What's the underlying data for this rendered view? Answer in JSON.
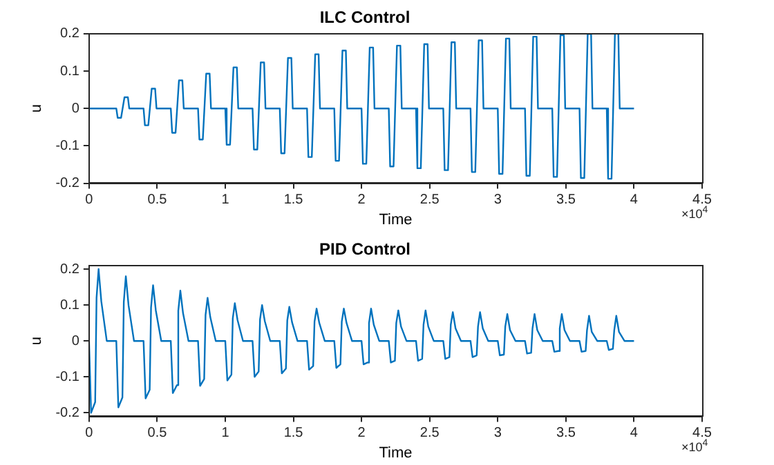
{
  "chart_data": [
    {
      "type": "line",
      "title": "ILC Control",
      "xlabel": "Time",
      "ylabel": "u",
      "annotations": [
        "×10$^{4}$"
      ],
      "xlim": [
        0,
        4.5
      ],
      "xticks": [
        0,
        0.5,
        1,
        1.5,
        2,
        2.5,
        3,
        3.5,
        4,
        4.5
      ],
      "ylim": [
        -0.2,
        0.2
      ],
      "yticks": [
        -0.2,
        -0.1,
        0,
        0.1,
        0.2
      ],
      "grid": false,
      "legend": false,
      "marker": "none",
      "line_style": "solid",
      "series": [
        {
          "color": "#0072bd",
          "x": [
            0,
            0.2,
            0.21,
            0.235,
            0.26,
            0.285,
            0.295,
            0.4,
            0.41,
            0.435,
            0.46,
            0.485,
            0.495,
            0.6,
            0.61,
            0.635,
            0.66,
            0.685,
            0.695,
            0.8,
            0.81,
            0.835,
            0.86,
            0.885,
            0.895,
            1.0,
            1.01,
            1.035,
            1.06,
            1.085,
            1.095,
            1.2,
            1.21,
            1.235,
            1.26,
            1.285,
            1.295,
            1.4,
            1.41,
            1.435,
            1.46,
            1.485,
            1.495,
            1.6,
            1.61,
            1.635,
            1.66,
            1.685,
            1.695,
            1.8,
            1.81,
            1.835,
            1.86,
            1.885,
            1.895,
            2.0,
            2.01,
            2.035,
            2.06,
            2.085,
            2.095,
            2.2,
            2.21,
            2.235,
            2.26,
            2.285,
            2.295,
            2.4,
            2.41,
            2.435,
            2.46,
            2.485,
            2.495,
            2.6,
            2.61,
            2.635,
            2.66,
            2.685,
            2.695,
            2.8,
            2.81,
            2.835,
            2.86,
            2.885,
            2.895,
            3.0,
            3.01,
            3.035,
            3.06,
            3.085,
            3.095,
            3.2,
            3.21,
            3.235,
            3.26,
            3.285,
            3.295,
            3.4,
            3.41,
            3.435,
            3.46,
            3.485,
            3.495,
            3.6,
            3.61,
            3.635,
            3.66,
            3.685,
            3.695,
            3.8,
            3.81,
            3.835,
            3.86,
            3.885,
            3.895,
            4.0
          ],
          "values": [
            0,
            0,
            -0.025,
            -0.025,
            0.03,
            0.03,
            0,
            0,
            -0.045,
            -0.045,
            0.053,
            0.053,
            0,
            0,
            -0.065,
            -0.065,
            0.075,
            0.075,
            0,
            0,
            -0.083,
            -0.083,
            0.093,
            0.093,
            0,
            0,
            -0.097,
            -0.097,
            0.11,
            0.11,
            0,
            0,
            -0.11,
            -0.11,
            0.123,
            0.123,
            0,
            0,
            -0.12,
            -0.12,
            0.135,
            0.135,
            0,
            0,
            -0.13,
            -0.13,
            0.145,
            0.145,
            0,
            0,
            -0.14,
            -0.14,
            0.155,
            0.155,
            0,
            0,
            -0.148,
            -0.148,
            0.163,
            0.163,
            0,
            0,
            -0.155,
            -0.155,
            0.168,
            0.168,
            0,
            0,
            -0.16,
            -0.16,
            0.172,
            0.172,
            0,
            0,
            -0.165,
            -0.165,
            0.177,
            0.177,
            0,
            0,
            -0.17,
            -0.17,
            0.182,
            0.182,
            0,
            0,
            -0.175,
            -0.175,
            0.187,
            0.187,
            0,
            0,
            -0.18,
            -0.18,
            0.192,
            0.192,
            0,
            0,
            -0.183,
            -0.183,
            0.196,
            0.196,
            0,
            0,
            -0.186,
            -0.186,
            0.199,
            0.199,
            0,
            0,
            -0.188,
            -0.188,
            0.2,
            0.2,
            0,
            0
          ]
        }
      ]
    },
    {
      "type": "line",
      "title": "PID Control",
      "xlabel": "Time",
      "ylabel": "u",
      "annotations": [
        "×10$^{4}$"
      ],
      "xlim": [
        0,
        4.5
      ],
      "xticks": [
        0,
        0.5,
        1,
        1.5,
        2,
        2.5,
        3,
        3.5,
        4,
        4.5
      ],
      "ylim": [
        -0.21,
        0.21
      ],
      "yticks": [
        -0.2,
        -0.1,
        0,
        0.1,
        0.2
      ],
      "grid": false,
      "legend": false,
      "marker": "none",
      "line_style": "solid",
      "series": [
        {
          "color": "#0072bd",
          "x": [
            0,
            0.015,
            0.045,
            0.055,
            0.07,
            0.09,
            0.13,
            0.2,
            0.215,
            0.245,
            0.255,
            0.27,
            0.29,
            0.33,
            0.4,
            0.415,
            0.445,
            0.455,
            0.47,
            0.49,
            0.53,
            0.6,
            0.615,
            0.645,
            0.655,
            0.67,
            0.69,
            0.73,
            0.8,
            0.815,
            0.845,
            0.855,
            0.87,
            0.89,
            0.93,
            1.0,
            1.015,
            1.045,
            1.055,
            1.07,
            1.09,
            1.13,
            1.2,
            1.215,
            1.245,
            1.255,
            1.27,
            1.29,
            1.33,
            1.4,
            1.415,
            1.445,
            1.455,
            1.47,
            1.49,
            1.53,
            1.6,
            1.615,
            1.645,
            1.655,
            1.67,
            1.69,
            1.73,
            1.8,
            1.815,
            1.845,
            1.855,
            1.87,
            1.89,
            1.93,
            2.0,
            2.015,
            2.045,
            2.055,
            2.07,
            2.09,
            2.13,
            2.2,
            2.215,
            2.245,
            2.255,
            2.27,
            2.29,
            2.33,
            2.4,
            2.415,
            2.445,
            2.455,
            2.47,
            2.49,
            2.53,
            2.6,
            2.615,
            2.645,
            2.655,
            2.67,
            2.69,
            2.73,
            2.8,
            2.815,
            2.845,
            2.855,
            2.87,
            2.89,
            2.93,
            3.0,
            3.015,
            3.045,
            3.055,
            3.07,
            3.09,
            3.13,
            3.2,
            3.215,
            3.245,
            3.255,
            3.27,
            3.29,
            3.33,
            3.4,
            3.415,
            3.445,
            3.455,
            3.47,
            3.49,
            3.53,
            3.6,
            3.615,
            3.645,
            3.655,
            3.67,
            3.69,
            3.73,
            3.8,
            3.815,
            3.845,
            3.855,
            3.87,
            3.89,
            3.93,
            4.0
          ],
          "values": [
            0,
            -0.2,
            -0.17,
            0.12,
            0.2,
            0.11,
            0,
            0,
            -0.185,
            -0.157,
            0.108,
            0.18,
            0.099,
            0,
            0,
            -0.16,
            -0.136,
            0.093,
            0.155,
            0.085,
            0,
            0,
            -0.145,
            -0.123,
            0.084,
            0.14,
            0.077,
            0,
            0,
            -0.125,
            -0.106,
            0.072,
            0.12,
            0.066,
            0,
            0,
            -0.11,
            -0.094,
            0.063,
            0.105,
            0.058,
            0,
            0,
            -0.1,
            -0.085,
            0.06,
            0.1,
            0.055,
            0,
            0,
            -0.09,
            -0.077,
            0.057,
            0.095,
            0.052,
            0,
            0,
            -0.08,
            -0.07,
            0.054,
            0.09,
            0.05,
            0,
            0,
            -0.075,
            -0.065,
            0.054,
            0.09,
            0.05,
            0,
            0,
            -0.065,
            -0.06,
            0.05,
            0.09,
            0.045,
            0,
            0,
            -0.06,
            -0.055,
            0.05,
            0.085,
            0.04,
            0,
            0,
            -0.055,
            -0.05,
            0.045,
            0.085,
            0.04,
            0,
            0,
            -0.05,
            -0.045,
            0.045,
            0.08,
            0.035,
            0,
            0,
            -0.045,
            -0.04,
            0.04,
            0.08,
            0.035,
            0,
            0,
            -0.04,
            -0.038,
            0.04,
            0.075,
            0.03,
            0,
            0,
            -0.035,
            -0.033,
            0.035,
            0.075,
            0.03,
            0,
            0,
            -0.03,
            -0.028,
            0.035,
            0.075,
            0.03,
            0,
            0,
            -0.03,
            -0.028,
            0.03,
            0.07,
            0.025,
            0,
            0,
            -0.025,
            -0.022,
            0.03,
            0.07,
            0.025,
            0,
            0
          ]
        }
      ]
    }
  ]
}
